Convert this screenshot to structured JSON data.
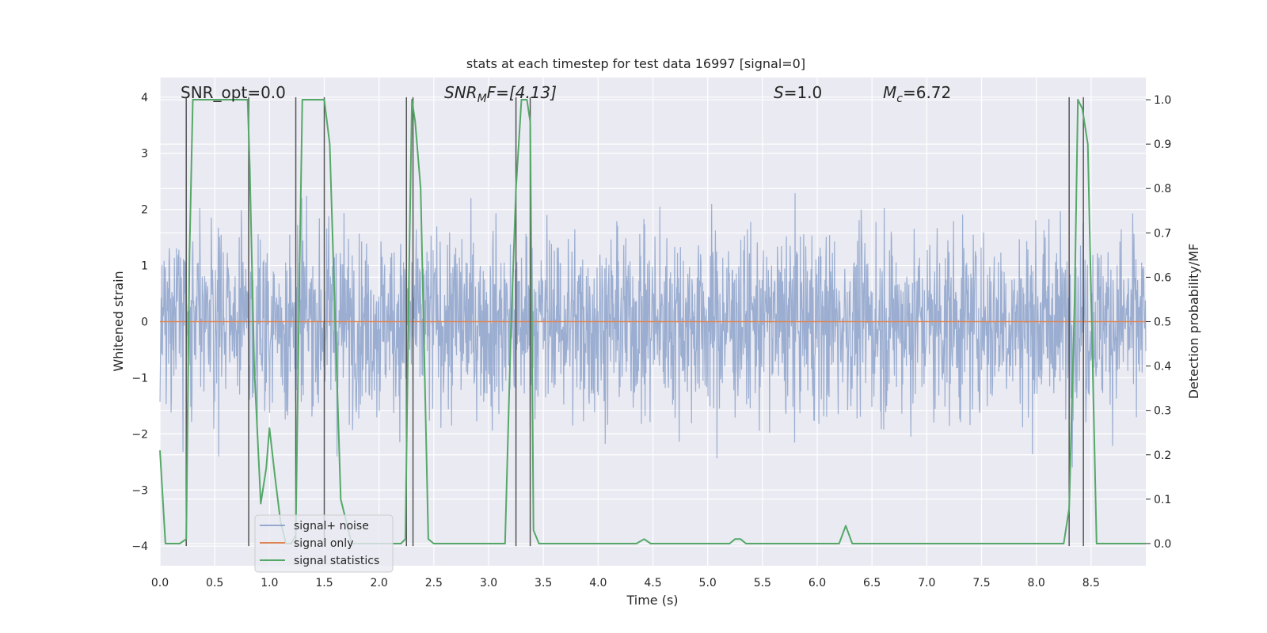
{
  "chart_data": {
    "type": "line",
    "title": "stats at each timestep for test data 16997 [signal=0]",
    "xlabel": "Time (s)",
    "ylabel": "Whitened strain",
    "y2label": "Detection probability/MF",
    "xlim": [
      0.0,
      9.0
    ],
    "ylim": [
      -4.35,
      4.35
    ],
    "y2lim": [
      -0.05,
      1.05
    ],
    "xticks": [
      0.0,
      0.5,
      1.0,
      1.5,
      2.0,
      2.5,
      3.0,
      3.5,
      4.0,
      4.5,
      5.0,
      5.5,
      6.0,
      6.5,
      7.0,
      7.5,
      8.0,
      8.5
    ],
    "xtick_labels": [
      "0.0",
      "0.5",
      "1.0",
      "1.5",
      "2.0",
      "2.5",
      "3.0",
      "3.5",
      "4.0",
      "4.5",
      "5.0",
      "5.5",
      "6.0",
      "6.5",
      "7.0",
      "7.5",
      "8.0",
      "8.5"
    ],
    "yticks": [
      -4,
      -3,
      -2,
      -1,
      0,
      1,
      2,
      3,
      4
    ],
    "ytick_labels": [
      "−4",
      "−3",
      "−2",
      "−1",
      "0",
      "1",
      "2",
      "3",
      "4"
    ],
    "y2ticks": [
      0.0,
      0.1,
      0.2,
      0.3,
      0.4,
      0.5,
      0.6,
      0.7,
      0.8,
      0.9,
      1.0
    ],
    "y2tick_labels": [
      "0.0",
      "0.1",
      "0.2",
      "0.3",
      "0.4",
      "0.5",
      "0.6",
      "0.7",
      "0.8",
      "0.9",
      "1.0"
    ],
    "grid": true,
    "legend_position": "bottom-left",
    "colors": {
      "background": "#eaeaf2",
      "noise": "#4c72b0",
      "signal": "#dd8452",
      "stats": "#55a868",
      "vlines": "#555555"
    },
    "annotations": {
      "snr_opt": "SNR_opt=0.0",
      "snr_mf_main": "SNR",
      "snr_mf_sub": "M",
      "snr_mf_rest": "F=[4.13]",
      "s_main": "S",
      "s_rest": "=1.0",
      "mc_main": "M",
      "mc_sub": "c",
      "mc_rest": "=6.72"
    },
    "series": [
      {
        "name": "signal+ noise",
        "kind": "noise",
        "amplitude_envelope": 3.2,
        "x_range": [
          0.0,
          9.0
        ]
      },
      {
        "name": "signal only",
        "kind": "flat",
        "y": 0.0
      },
      {
        "name": "signal statistics",
        "kind": "probability",
        "x": [
          0.0,
          0.05,
          0.1,
          0.18,
          0.24,
          0.27,
          0.3,
          0.4,
          0.6,
          0.75,
          0.8,
          0.82,
          0.86,
          0.88,
          0.92,
          0.97,
          1.0,
          1.05,
          1.1,
          1.15,
          1.2,
          1.24,
          1.27,
          1.3,
          1.35,
          1.4,
          1.5,
          1.55,
          1.6,
          1.65,
          1.75,
          2.0,
          2.15,
          2.2,
          2.24,
          2.27,
          2.3,
          2.33,
          2.38,
          2.45,
          2.5,
          2.6,
          2.8,
          3.0,
          3.15,
          3.2,
          3.25,
          3.3,
          3.35,
          3.38,
          3.41,
          3.46,
          3.55,
          3.8,
          4.2,
          4.35,
          4.42,
          4.48,
          4.55,
          4.7,
          5.0,
          5.2,
          5.25,
          5.3,
          5.35,
          5.4,
          5.8,
          6.1,
          6.2,
          6.26,
          6.32,
          6.38,
          6.5,
          7.0,
          8.0,
          8.2,
          8.25,
          8.3,
          8.35,
          8.38,
          8.42,
          8.47,
          8.55,
          9.0
        ],
        "y": [
          0.21,
          0.0,
          0.0,
          0.0,
          0.01,
          0.65,
          1.0,
          1.0,
          1.0,
          1.0,
          1.0,
          0.85,
          0.4,
          0.3,
          0.09,
          0.17,
          0.26,
          0.15,
          0.05,
          0.0,
          0.0,
          0.02,
          0.55,
          1.0,
          1.0,
          1.0,
          1.0,
          0.9,
          0.5,
          0.1,
          0.0,
          0.0,
          0.0,
          0.0,
          0.01,
          0.55,
          1.0,
          0.95,
          0.8,
          0.01,
          0.0,
          0.0,
          0.0,
          0.0,
          0.0,
          0.45,
          0.8,
          1.0,
          1.0,
          0.95,
          0.03,
          0.0,
          0.0,
          0.0,
          0.0,
          0.0,
          0.01,
          0.0,
          0.0,
          0.0,
          0.0,
          0.0,
          0.01,
          0.01,
          0.0,
          0.0,
          0.0,
          0.0,
          0.0,
          0.04,
          0.0,
          0.0,
          0.0,
          0.0,
          0.0,
          0.0,
          0.0,
          0.08,
          0.55,
          1.0,
          0.98,
          0.9,
          0.0,
          0.0
        ]
      }
    ],
    "vlines_x": [
      0.24,
      0.81,
      1.24,
      1.5,
      2.25,
      2.31,
      3.25,
      3.38,
      8.3,
      8.43
    ]
  },
  "legend": {
    "noise_label": "signal+ noise",
    "signal_label": "signal only",
    "stats_label": "signal statistics"
  }
}
